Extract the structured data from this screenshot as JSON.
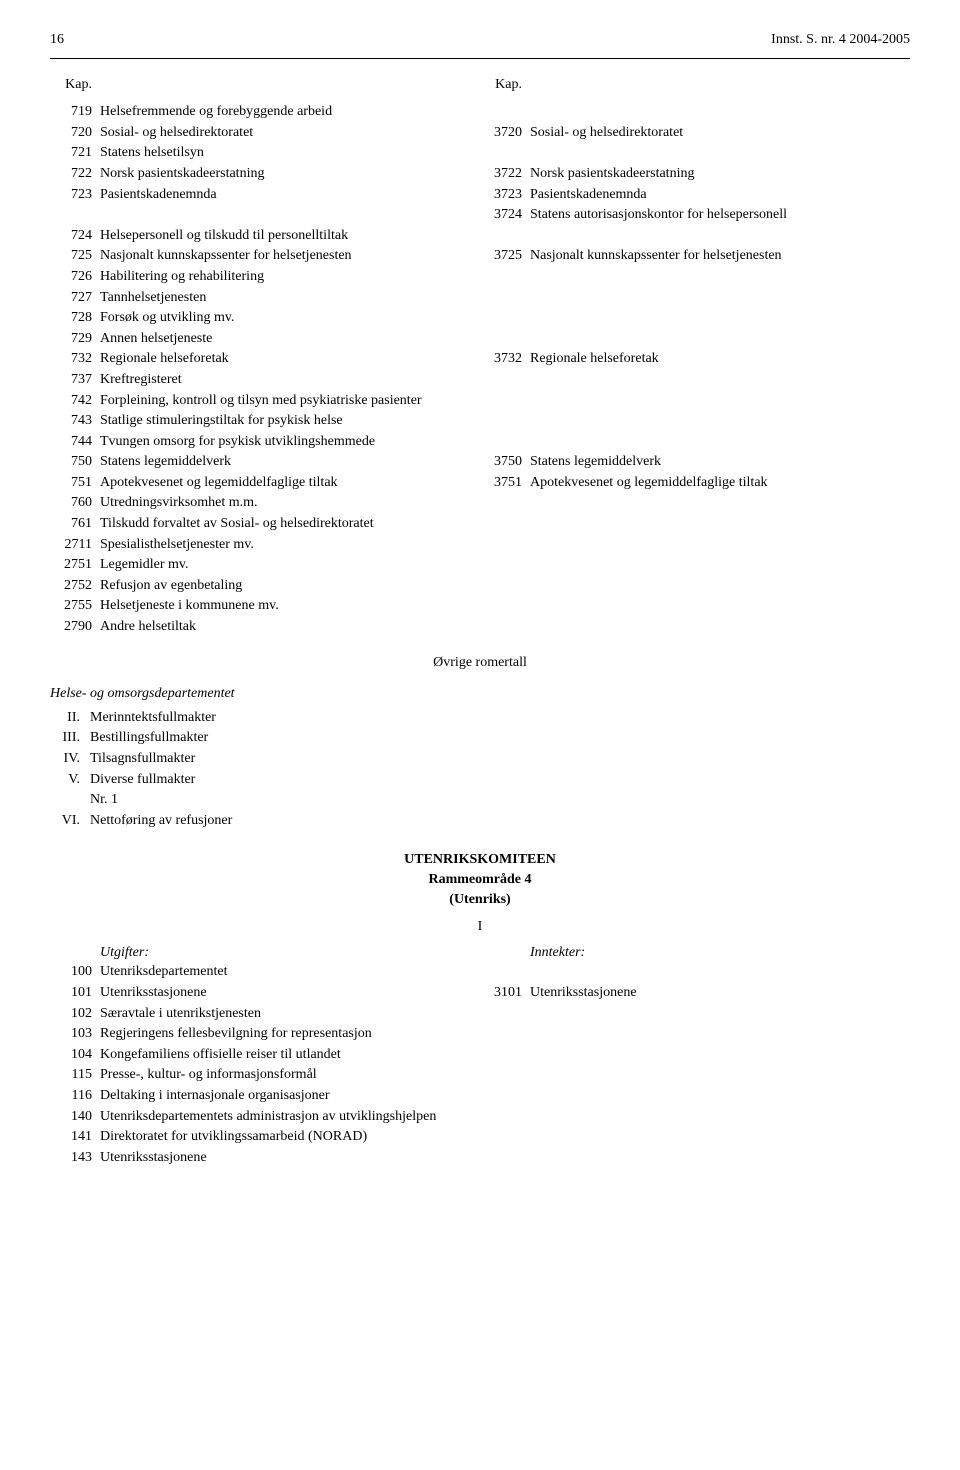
{
  "header": {
    "pageNumber": "16",
    "docRef": "Innst. S. nr. 4 2004-2005"
  },
  "kapHeader": "Kap.",
  "leftItems": [
    {
      "num": "719",
      "text": "Helsefremmende og forebyggende arbeid"
    },
    {
      "num": "720",
      "text": "Sosial- og helsedirektoratet"
    },
    {
      "num": "721",
      "text": "Statens helsetilsyn"
    },
    {
      "num": "722",
      "text": "Norsk pasientskadeerstatning"
    },
    {
      "num": "723",
      "text": "Pasientskadenemnda"
    },
    {
      "num": "",
      "text": ""
    },
    {
      "num": "724",
      "text": "Helsepersonell og tilskudd til personelltiltak"
    },
    {
      "num": "725",
      "text": "Nasjonalt kunnskapssenter for helsetjenesten"
    },
    {
      "num": "726",
      "text": "Habilitering og rehabilitering"
    },
    {
      "num": "727",
      "text": "Tannhelsetjenesten"
    },
    {
      "num": "728",
      "text": "Forsøk og utvikling mv."
    },
    {
      "num": "729",
      "text": "Annen helsetjeneste"
    },
    {
      "num": "732",
      "text": "Regionale helseforetak"
    },
    {
      "num": "737",
      "text": "Kreftregisteret"
    },
    {
      "num": "742",
      "text": "Forpleining, kontroll og tilsyn med psykiatriske pasienter"
    },
    {
      "num": "743",
      "text": "Statlige stimuleringstiltak for psykisk helse"
    },
    {
      "num": "744",
      "text": "Tvungen omsorg for psykisk utviklingshemmede"
    },
    {
      "num": "750",
      "text": "Statens legemiddelverk"
    },
    {
      "num": "751",
      "text": "Apotekvesenet og legemiddelfaglige tiltak"
    },
    {
      "num": "760",
      "text": "Utredningsvirksomhet m.m."
    },
    {
      "num": "761",
      "text": "Tilskudd forvaltet av Sosial- og helsedirektoratet"
    },
    {
      "num": "2711",
      "text": "Spesialisthelsetjenester mv."
    },
    {
      "num": "2751",
      "text": "Legemidler mv."
    },
    {
      "num": "2752",
      "text": "Refusjon av egenbetaling"
    },
    {
      "num": "2755",
      "text": "Helsetjeneste i kommunene mv."
    },
    {
      "num": "2790",
      "text": "Andre helsetiltak"
    }
  ],
  "rightItems": [
    {
      "num": "",
      "text": ""
    },
    {
      "num": "3720",
      "text": "Sosial- og helsedirektoratet"
    },
    {
      "num": "",
      "text": ""
    },
    {
      "num": "3722",
      "text": "Norsk pasientskadeerstatning"
    },
    {
      "num": "3723",
      "text": "Pasientskadenemnda"
    },
    {
      "num": "3724",
      "text": "Statens autorisasjonskontor for helsepersonell"
    },
    {
      "num": "",
      "text": ""
    },
    {
      "num": "3725",
      "text": "Nasjonalt kunnskapssenter for helsetjenesten"
    },
    {
      "num": "",
      "text": ""
    },
    {
      "num": "",
      "text": ""
    },
    {
      "num": "",
      "text": ""
    },
    {
      "num": "",
      "text": ""
    },
    {
      "num": "3732",
      "text": "Regionale helseforetak"
    },
    {
      "num": "",
      "text": ""
    },
    {
      "num": "",
      "text": ""
    },
    {
      "num": "",
      "text": ""
    },
    {
      "num": "",
      "text": ""
    },
    {
      "num": "3750",
      "text": "Statens legemiddelverk"
    },
    {
      "num": "3751",
      "text": "Apotekvesenet og legemiddelfaglige tiltak"
    }
  ],
  "romertall": "Øvrige romertall",
  "deptLabel": "Helse- og omsorgsdepartementet",
  "romanItems": [
    {
      "num": "II.",
      "text": "Merinntektsfullmakter"
    },
    {
      "num": "III.",
      "text": "Bestillingsfullmakter"
    },
    {
      "num": "IV.",
      "text": "Tilsagnsfullmakter"
    },
    {
      "num": "V.",
      "text": "Diverse fullmakter"
    },
    {
      "num": "",
      "text": "Nr. 1"
    },
    {
      "num": "VI.",
      "text": "Nettoføring av refusjoner"
    }
  ],
  "committee": {
    "title": "UTENRIKSKOMITEEN",
    "sub": "Rammeområde 4",
    "paren": "(Utenriks)"
  },
  "singleI": "I",
  "utgifter": "Utgifter:",
  "inntekter": "Inntekter:",
  "utLeftItems": [
    {
      "num": "100",
      "text": "Utenriksdepartementet"
    },
    {
      "num": "101",
      "text": "Utenriksstasjonene"
    },
    {
      "num": "102",
      "text": "Særavtale i utenrikstjenesten"
    },
    {
      "num": "103",
      "text": "Regjeringens fellesbevilgning for representasjon"
    },
    {
      "num": "104",
      "text": "Kongefamiliens offisielle reiser til utlandet"
    },
    {
      "num": "115",
      "text": "Presse-, kultur- og informasjonsformål"
    },
    {
      "num": "116",
      "text": "Deltaking i internasjonale organisasjoner"
    },
    {
      "num": "140",
      "text": "Utenriksdepartementets administrasjon av utviklingshjelpen"
    },
    {
      "num": "141",
      "text": "Direktoratet for utviklingssamarbeid (NORAD)"
    },
    {
      "num": "143",
      "text": "Utenriksstasjonene"
    }
  ],
  "utRightItems": [
    {
      "num": "",
      "text": ""
    },
    {
      "num": "3101",
      "text": "Utenriksstasjonene"
    }
  ]
}
